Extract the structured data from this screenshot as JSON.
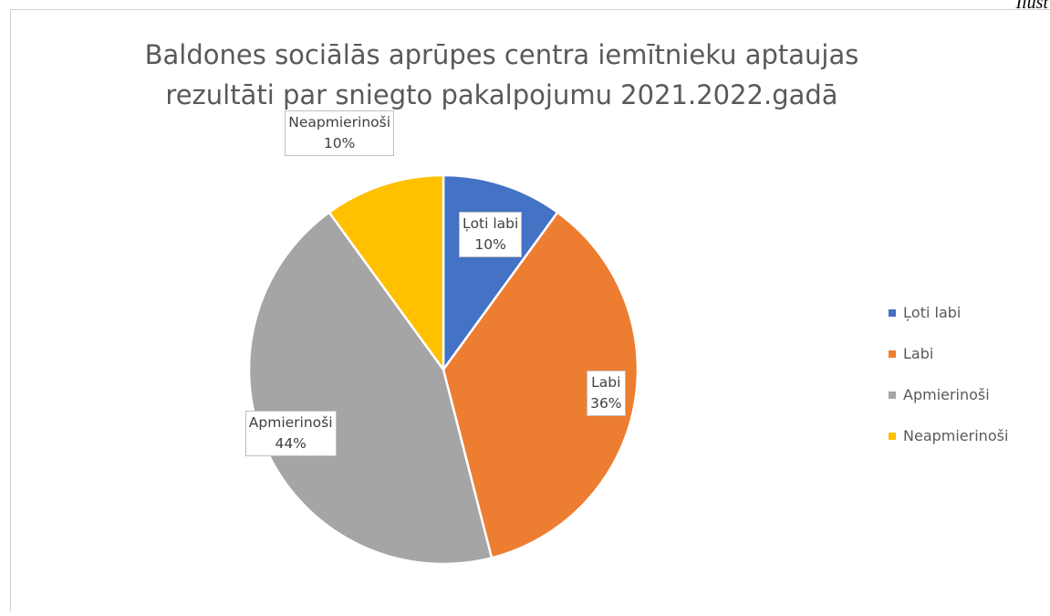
{
  "corner_text": "Ilust",
  "chart_data": {
    "type": "pie",
    "title_lines": [
      "Baldones sociālās aprūpes centra iemītnieku aptaujas",
      "rezultāti par sniegto pakalpojumu 2021.2022.gadā"
    ],
    "categories": [
      "Ļoti labi",
      "Labi",
      "Apmierinoši",
      "Neapmierinoši"
    ],
    "values": [
      10,
      36,
      44,
      10
    ],
    "value_labels": [
      "10%",
      "36%",
      "44%",
      "10%"
    ],
    "colors": [
      "#4472C4",
      "#ED7D31",
      "#A5A5A5",
      "#FFC000"
    ],
    "start_angle_deg": 0,
    "direction": "clockwise",
    "legend_position": "right",
    "data_labels": "category and percentage"
  }
}
